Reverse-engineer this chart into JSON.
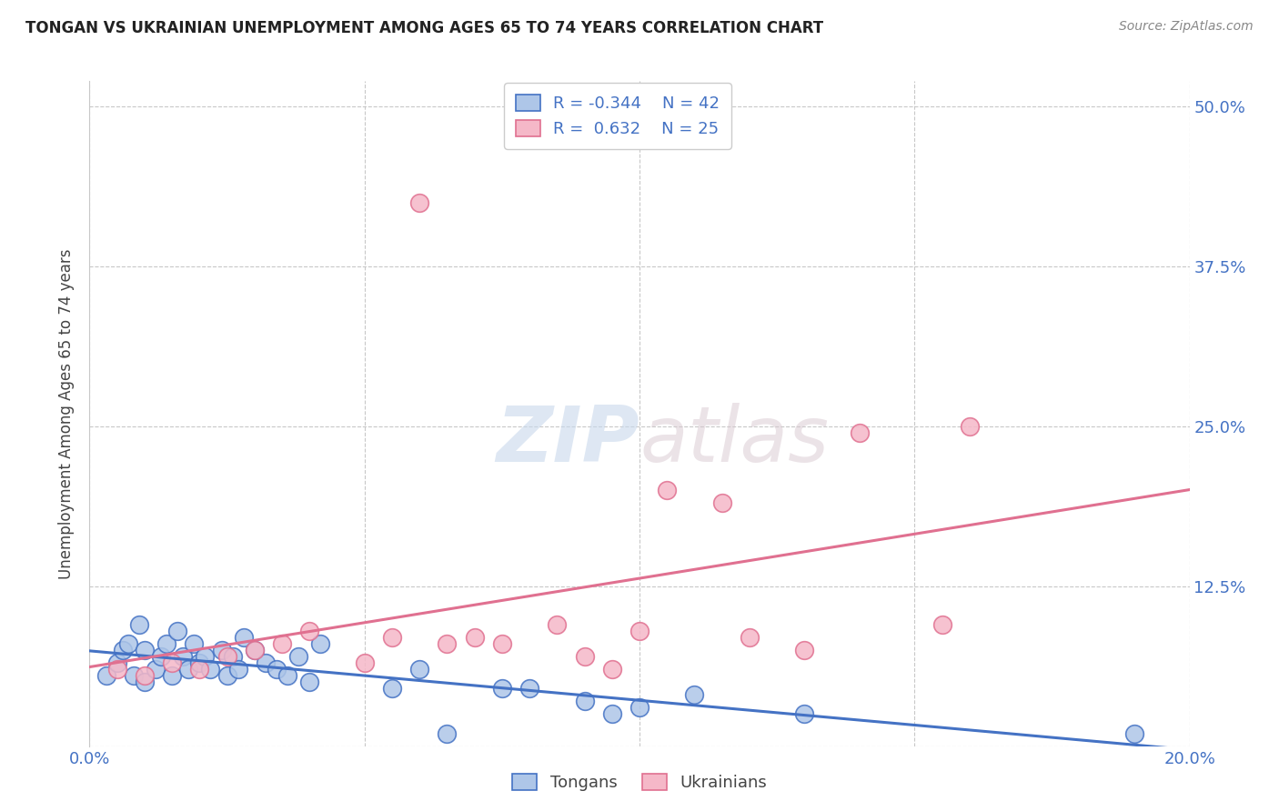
{
  "title": "TONGAN VS UKRAINIAN UNEMPLOYMENT AMONG AGES 65 TO 74 YEARS CORRELATION CHART",
  "source": "Source: ZipAtlas.com",
  "ylabel": "Unemployment Among Ages 65 to 74 years",
  "xlim": [
    0.0,
    0.2
  ],
  "ylim": [
    0.0,
    0.52
  ],
  "xticks": [
    0.0,
    0.05,
    0.1,
    0.15,
    0.2
  ],
  "yticks": [
    0.0,
    0.125,
    0.25,
    0.375,
    0.5
  ],
  "xticklabels": [
    "0.0%",
    "",
    "",
    "",
    "20.0%"
  ],
  "yticklabels": [
    "",
    "12.5%",
    "25.0%",
    "37.5%",
    "50.0%"
  ],
  "blue_R": -0.344,
  "blue_N": 42,
  "pink_R": 0.632,
  "pink_N": 25,
  "blue_color": "#aec6e8",
  "pink_color": "#f5b8c8",
  "blue_line_color": "#4472c4",
  "pink_line_color": "#e07090",
  "watermark_zip": "ZIP",
  "watermark_atlas": "atlas",
  "blue_scatter_x": [
    0.003,
    0.005,
    0.006,
    0.007,
    0.008,
    0.009,
    0.01,
    0.01,
    0.012,
    0.013,
    0.014,
    0.015,
    0.016,
    0.017,
    0.018,
    0.019,
    0.02,
    0.021,
    0.022,
    0.024,
    0.025,
    0.026,
    0.027,
    0.028,
    0.03,
    0.032,
    0.034,
    0.036,
    0.038,
    0.04,
    0.042,
    0.055,
    0.06,
    0.065,
    0.075,
    0.08,
    0.09,
    0.095,
    0.1,
    0.11,
    0.13,
    0.19
  ],
  "blue_scatter_y": [
    0.055,
    0.065,
    0.075,
    0.08,
    0.055,
    0.095,
    0.05,
    0.075,
    0.06,
    0.07,
    0.08,
    0.055,
    0.09,
    0.07,
    0.06,
    0.08,
    0.065,
    0.07,
    0.06,
    0.075,
    0.055,
    0.07,
    0.06,
    0.085,
    0.075,
    0.065,
    0.06,
    0.055,
    0.07,
    0.05,
    0.08,
    0.045,
    0.06,
    0.01,
    0.045,
    0.045,
    0.035,
    0.025,
    0.03,
    0.04,
    0.025,
    0.01
  ],
  "pink_scatter_x": [
    0.005,
    0.01,
    0.015,
    0.02,
    0.025,
    0.03,
    0.035,
    0.04,
    0.05,
    0.055,
    0.06,
    0.065,
    0.07,
    0.075,
    0.085,
    0.09,
    0.095,
    0.1,
    0.105,
    0.115,
    0.12,
    0.13,
    0.14,
    0.155,
    0.16
  ],
  "pink_scatter_y": [
    0.06,
    0.055,
    0.065,
    0.06,
    0.07,
    0.075,
    0.08,
    0.09,
    0.065,
    0.085,
    0.425,
    0.08,
    0.085,
    0.08,
    0.095,
    0.07,
    0.06,
    0.09,
    0.2,
    0.19,
    0.085,
    0.075,
    0.245,
    0.095,
    0.25
  ]
}
